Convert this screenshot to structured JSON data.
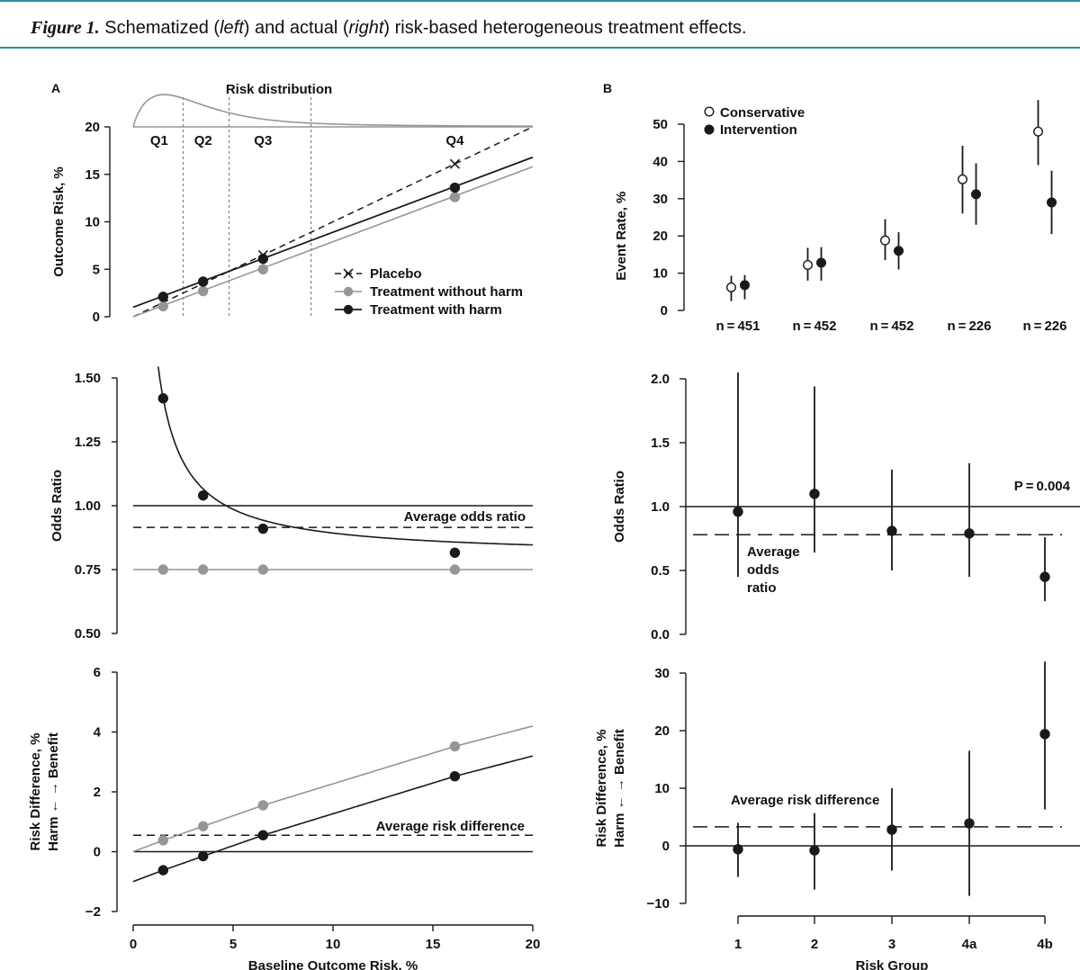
{
  "caption": {
    "figure_label": "Figure 1.",
    "parts": [
      "Schematized (",
      "left",
      ") and actual (",
      "right",
      ") risk-based heterogeneous treatment effects."
    ]
  },
  "panel_labels": {
    "left": "A",
    "right": "B"
  },
  "colors": {
    "black": "#1a1a1a",
    "gray": "#969696",
    "accent": "#2f8fa0"
  },
  "chart_data": [
    {
      "id": "A-top",
      "type": "line",
      "title": "Risk distribution",
      "xlabel": "",
      "ylabel": "Outcome Risk, %",
      "xlim": [
        0,
        20
      ],
      "ylim": [
        0,
        20
      ],
      "yticks": [
        0,
        5,
        10,
        15,
        20
      ],
      "quartile_labels": [
        "Q1",
        "Q2",
        "Q3",
        "Q4"
      ],
      "quartile_label_x": [
        1.3,
        3.5,
        6.5,
        16.1
      ],
      "quartile_bounds": [
        2.5,
        4.8,
        8.9
      ],
      "legend": [
        "Placebo",
        "Treatment without harm",
        "Treatment with harm"
      ],
      "series": [
        {
          "name": "Placebo",
          "style": "dashed",
          "marker": "x",
          "line": [
            [
              0,
              0
            ],
            [
              20,
              20
            ]
          ],
          "points": [
            [
              6.5,
              6.5
            ],
            [
              16.1,
              16.1
            ]
          ]
        },
        {
          "name": "Treatment without harm",
          "style": "gray",
          "marker": "circle",
          "line": [
            [
              0,
              0
            ],
            [
              20,
              15.8
            ]
          ],
          "points": [
            [
              1.5,
              1.1
            ],
            [
              3.5,
              2.7
            ],
            [
              6.5,
              5.0
            ],
            [
              16.1,
              12.6
            ]
          ]
        },
        {
          "name": "Treatment with harm",
          "style": "solid",
          "marker": "circle",
          "line": [
            [
              0,
              1.0
            ],
            [
              20,
              16.8
            ]
          ],
          "points": [
            [
              1.5,
              2.1
            ],
            [
              3.5,
              3.7
            ],
            [
              6.5,
              6.1
            ],
            [
              16.1,
              13.6
            ]
          ]
        }
      ]
    },
    {
      "id": "A-middle",
      "type": "line",
      "ylabel": "Odds Ratio",
      "xlim": [
        0,
        20
      ],
      "ylim": [
        0.5,
        1.5
      ],
      "yticks": [
        "0.50",
        "0.75",
        "1.00",
        "1.25",
        "1.50"
      ],
      "reference_line": 1.0,
      "average_line": {
        "label": "Average odds ratio",
        "value": 0.915
      },
      "series": [
        {
          "name": "Treatment with harm",
          "points": [
            [
              1.5,
              1.42
            ],
            [
              3.5,
              1.04
            ],
            [
              6.5,
              0.91
            ],
            [
              16.1,
              0.816
            ]
          ]
        },
        {
          "name": "Treatment without harm",
          "value": 0.75,
          "points": [
            [
              1.5,
              0.75
            ],
            [
              3.5,
              0.75
            ],
            [
              6.5,
              0.75
            ],
            [
              16.1,
              0.75
            ]
          ]
        }
      ]
    },
    {
      "id": "A-bottom",
      "type": "line",
      "xlabel": "Baseline Outcome Risk, %",
      "ylabel": "Risk Difference, %",
      "ylabel2": "Harm ←      → Benefit",
      "xlim": [
        0,
        20
      ],
      "ylim": [
        -2,
        6
      ],
      "xticks": [
        0,
        5,
        10,
        15,
        20
      ],
      "yticks": [
        "−2",
        "0",
        "2",
        "4",
        "6"
      ],
      "average_line": {
        "label": "Average risk difference",
        "value": 0.55
      },
      "series": [
        {
          "name": "Treatment without harm",
          "points": [
            [
              1.5,
              0.38
            ],
            [
              3.5,
              0.85
            ],
            [
              6.5,
              1.55
            ],
            [
              16.1,
              3.52
            ]
          ]
        },
        {
          "name": "Treatment with harm",
          "points": [
            [
              1.5,
              -0.62
            ],
            [
              3.5,
              -0.15
            ],
            [
              6.5,
              0.55
            ],
            [
              16.1,
              2.52
            ]
          ]
        }
      ]
    },
    {
      "id": "B-top",
      "type": "scatter",
      "ylabel": "Event Rate, %",
      "ylim": [
        0,
        50
      ],
      "yticks": [
        0,
        10,
        20,
        30,
        40,
        50
      ],
      "categories": [
        "1",
        "2",
        "3",
        "4a",
        "4b"
      ],
      "n_labels": [
        "n = 451",
        "n = 452",
        "n = 452",
        "n = 226",
        "n = 226"
      ],
      "n_italic": "n",
      "legend": [
        "Conservative",
        "Intervention"
      ],
      "series": [
        {
          "name": "Conservative",
          "values": [
            6.2,
            12.2,
            18.8,
            35.2,
            48.0
          ],
          "lower": [
            2.5,
            8.0,
            13.5,
            26.0,
            39.0
          ],
          "upper": [
            9.3,
            16.8,
            24.5,
            44.2,
            56.5
          ]
        },
        {
          "name": "Intervention",
          "values": [
            6.8,
            12.8,
            16.0,
            31.2,
            29.0
          ],
          "lower": [
            3.0,
            8.0,
            11.0,
            23.0,
            20.5
          ],
          "upper": [
            9.5,
            17.0,
            21.0,
            39.5,
            37.5
          ]
        }
      ]
    },
    {
      "id": "B-middle",
      "type": "scatter",
      "ylabel": "Odds Ratio",
      "ylim": [
        0,
        2.0
      ],
      "yticks": [
        "0.0",
        "0.5",
        "1.0",
        "1.5",
        "2.0"
      ],
      "reference_line": 1.0,
      "p_value": "P = 0.004",
      "average_line": {
        "label_lines": [
          "Average",
          "odds",
          "ratio"
        ],
        "value": 0.78
      },
      "categories": [
        "1",
        "2",
        "3",
        "4a",
        "4b"
      ],
      "values": [
        0.96,
        1.1,
        0.81,
        0.79,
        0.45
      ],
      "lower": [
        0.45,
        0.64,
        0.5,
        0.45,
        0.26
      ],
      "upper": [
        2.15,
        1.94,
        1.29,
        1.34,
        0.76
      ]
    },
    {
      "id": "B-bottom",
      "type": "scatter",
      "xlabel": "Risk Group",
      "ylabel": "Risk Difference, %",
      "ylabel2": "Harm ←      → Benefit",
      "ylim": [
        -10,
        30
      ],
      "yticks": [
        "−10",
        "0",
        "10",
        "20",
        "30"
      ],
      "average_line": {
        "label": "Average risk difference",
        "value": 3.3
      },
      "categories": [
        "1",
        "2",
        "3",
        "4a",
        "4b"
      ],
      "values": [
        -0.6,
        -0.8,
        2.8,
        3.9,
        19.4
      ],
      "lower": [
        -5.4,
        -7.6,
        -4.3,
        -8.7,
        6.3
      ],
      "upper": [
        4.0,
        5.7,
        10.0,
        16.5,
        32.0
      ]
    }
  ]
}
